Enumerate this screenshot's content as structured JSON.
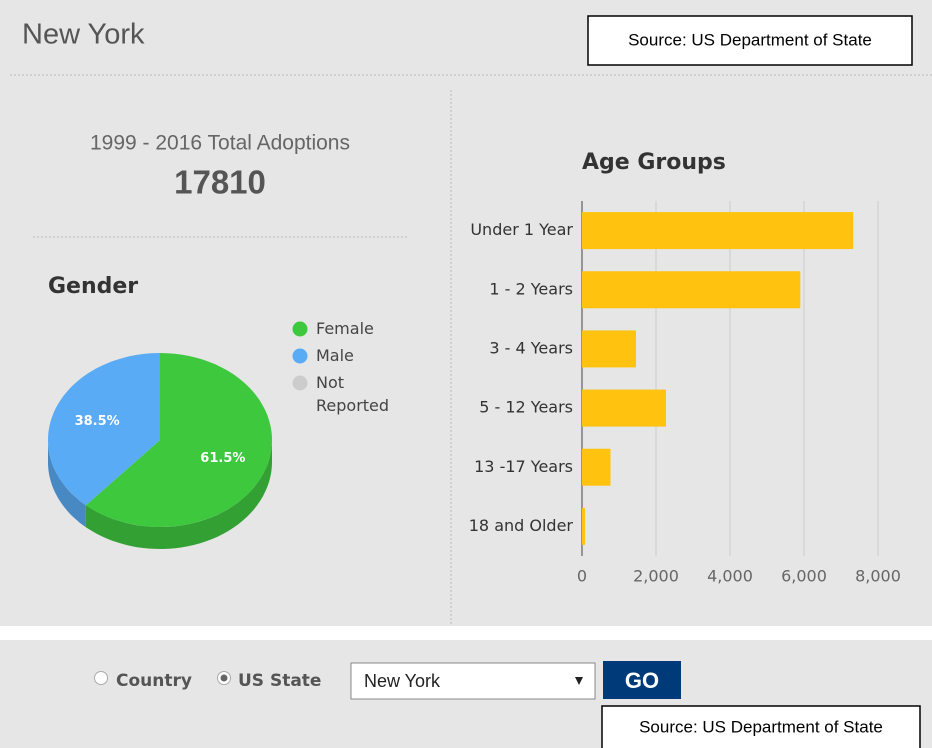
{
  "header": {
    "title": "New York",
    "source": "Source: US Department of State"
  },
  "summary": {
    "label": "1999 - 2016 Total Adoptions",
    "total": 17810
  },
  "chart_data": [
    {
      "type": "pie",
      "title": "Gender",
      "categories": [
        "Female",
        "Male",
        "Not Reported"
      ],
      "values": [
        61.5,
        38.5,
        0
      ],
      "value_labels": [
        "61.5%",
        "38.5%",
        null
      ],
      "colors": [
        "#3ec83e",
        "#5aabf5",
        "#cccccc"
      ]
    },
    {
      "type": "bar",
      "orientation": "horizontal",
      "title": "Age Groups",
      "categories": [
        "Under 1 Year",
        "1 - 2 Years",
        "3 - 4 Years",
        "5 - 12 Years",
        "13 -17 Years",
        "18 and Older"
      ],
      "values": [
        7330,
        5900,
        1460,
        2270,
        770,
        80
      ],
      "color": "#ffc20e",
      "xlim": [
        0,
        8000
      ],
      "xticks": [
        0,
        {
          "value": 2000,
          "label": "2,000"
        },
        {
          "value": 4000,
          "label": "4,000"
        },
        {
          "value": 6000,
          "label": "6,000"
        },
        {
          "value": 8000,
          "label": "8,000"
        }
      ],
      "grid": true
    }
  ],
  "controls": {
    "options": [
      "Country",
      "US State"
    ],
    "selected": 1,
    "state": "New York",
    "button": "GO"
  }
}
